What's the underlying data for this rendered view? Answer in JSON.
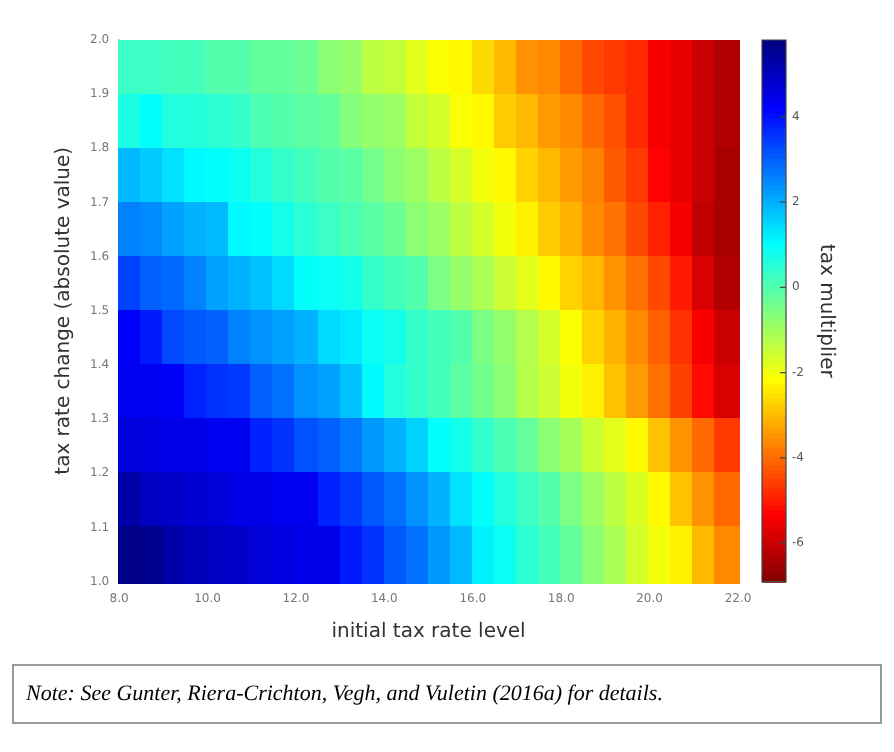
{
  "chart_data": {
    "type": "heatmap",
    "xlabel": "initial tax rate level",
    "ylabel": "tax rate change (absolute value)",
    "clabel": "tax multiplier",
    "annotations": [
      "Note: See Gunter, Riera-Crichton, Vegh, and Vuletin (2016a) for details."
    ],
    "x": [
      8.25,
      8.75,
      9.25,
      9.75,
      10.25,
      10.75,
      11.25,
      11.75,
      12.25,
      12.75,
      13.25,
      13.75,
      14.25,
      14.75,
      15.25,
      15.75,
      16.25,
      16.75,
      17.25,
      17.75,
      18.25,
      18.75,
      19.25,
      19.75,
      20.25,
      20.75,
      21.25,
      21.75
    ],
    "xlim": [
      8,
      22
    ],
    "xticks": [
      {
        "value": 8,
        "label": "8.0"
      },
      {
        "value": 10,
        "label": "10.0"
      },
      {
        "value": 12,
        "label": "12.0"
      },
      {
        "value": 14,
        "label": "14.0"
      },
      {
        "value": 16,
        "label": "16.0"
      },
      {
        "value": 18,
        "label": "18.0"
      },
      {
        "value": 20,
        "label": "20.0"
      },
      {
        "value": 22,
        "label": "22.0"
      }
    ],
    "ylim": [
      1,
      2
    ],
    "yticks": [
      {
        "value": 1,
        "label": "1.0"
      },
      {
        "value": 1.1,
        "label": "1.1"
      },
      {
        "value": 1.2,
        "label": "1.2"
      },
      {
        "value": 1.3,
        "label": "1.3"
      },
      {
        "value": 1.4,
        "label": "1.4"
      },
      {
        "value": 1.5,
        "label": "1.5"
      },
      {
        "value": 1.6,
        "label": "1.6"
      },
      {
        "value": 1.7,
        "label": "1.7"
      },
      {
        "value": 1.8,
        "label": "1.8"
      },
      {
        "value": 1.9,
        "label": "1.9"
      },
      {
        "value": 2,
        "label": "2.0"
      }
    ],
    "clim": [
      -6.9,
      5.8
    ],
    "cticks": [
      -6,
      -4,
      -2,
      0,
      2,
      4
    ],
    "cells": [
      [
        0.3,
        0.3,
        0.2,
        0.2,
        0.0,
        0.0,
        -0.2,
        -0.2,
        -0.3,
        -0.7,
        -0.8,
        -1.3,
        -1.4,
        -1.8,
        -2.1,
        -2.2,
        -2.6,
        -3.0,
        -3.5,
        -3.6,
        -4.0,
        -4.4,
        -4.6,
        -4.8,
        -5.4,
        -5.6,
        -6.0,
        -6.3
      ],
      [
        0.7,
        1.0,
        0.6,
        0.6,
        0.5,
        0.4,
        0.1,
        0.0,
        -0.1,
        -0.2,
        -0.6,
        -0.8,
        -0.9,
        -1.4,
        -1.6,
        -2.1,
        -2.2,
        -2.8,
        -3.0,
        -3.4,
        -3.6,
        -4.0,
        -4.3,
        -4.8,
        -5.4,
        -5.6,
        -6.0,
        -6.3
      ],
      [
        1.9,
        1.7,
        1.4,
        1.1,
        1.0,
        0.9,
        0.6,
        0.4,
        0.2,
        0.0,
        -0.1,
        -0.4,
        -0.7,
        -0.9,
        -1.3,
        -1.6,
        -2.0,
        -2.2,
        -2.7,
        -3.0,
        -3.4,
        -3.7,
        -4.2,
        -4.6,
        -5.3,
        -5.6,
        -6.0,
        -6.4
      ],
      [
        2.6,
        2.5,
        2.2,
        2.0,
        1.9,
        1.1,
        1.0,
        0.8,
        0.5,
        0.3,
        0.1,
        -0.1,
        -0.3,
        -0.7,
        -0.9,
        -1.3,
        -1.6,
        -2.0,
        -2.3,
        -2.8,
        -3.1,
        -3.6,
        -3.9,
        -4.4,
        -4.9,
        -5.4,
        -6.1,
        -6.4
      ],
      [
        3.4,
        3.0,
        2.9,
        2.6,
        2.2,
        2.0,
        1.8,
        1.5,
        1.0,
        0.9,
        0.8,
        0.4,
        0.2,
        0.0,
        -0.5,
        -0.8,
        -1.1,
        -1.5,
        -1.8,
        -2.2,
        -2.7,
        -3.0,
        -3.5,
        -3.9,
        -4.4,
        -5.0,
        -5.8,
        -6.3
      ],
      [
        4.3,
        3.9,
        3.3,
        3.1,
        3.0,
        2.6,
        2.4,
        2.2,
        2.0,
        1.5,
        1.3,
        0.9,
        0.8,
        0.4,
        0.2,
        0.0,
        -0.5,
        -0.8,
        -1.2,
        -1.6,
        -2.1,
        -2.7,
        -3.1,
        -3.6,
        -4.1,
        -4.7,
        -5.4,
        -6.0
      ],
      [
        4.4,
        4.4,
        4.3,
        3.8,
        3.6,
        3.5,
        3.0,
        2.8,
        2.4,
        2.2,
        1.8,
        1.1,
        0.6,
        0.4,
        0.2,
        -0.1,
        -0.4,
        -0.7,
        -1.2,
        -1.5,
        -2.0,
        -2.3,
        -2.9,
        -3.4,
        -3.9,
        -4.5,
        -5.2,
        -5.8
      ],
      [
        4.7,
        4.6,
        4.5,
        4.5,
        4.4,
        4.4,
        3.8,
        3.6,
        3.2,
        3.0,
        2.7,
        2.3,
        2.0,
        1.6,
        1.0,
        0.8,
        0.4,
        0.1,
        -0.2,
        -0.7,
        -1.0,
        -1.5,
        -1.8,
        -2.2,
        -2.9,
        -3.5,
        -4.0,
        -4.6
      ],
      [
        5.3,
        5.0,
        4.9,
        4.8,
        4.7,
        4.5,
        4.5,
        4.4,
        4.4,
        3.8,
        3.5,
        3.1,
        2.8,
        2.4,
        2.0,
        1.4,
        1.0,
        0.6,
        0.3,
        0.0,
        -0.5,
        -0.9,
        -1.3,
        -1.7,
        -2.2,
        -2.9,
        -3.5,
        -4.0
      ],
      [
        5.7,
        5.6,
        5.3,
        5.1,
        5.0,
        4.9,
        4.7,
        4.6,
        4.5,
        4.5,
        3.9,
        3.6,
        3.1,
        2.8,
        2.3,
        1.9,
        1.2,
        0.9,
        0.5,
        0.2,
        -0.2,
        -0.7,
        -1.1,
        -1.6,
        -2.0,
        -2.3,
        -3.0,
        -3.6
      ]
    ]
  }
}
